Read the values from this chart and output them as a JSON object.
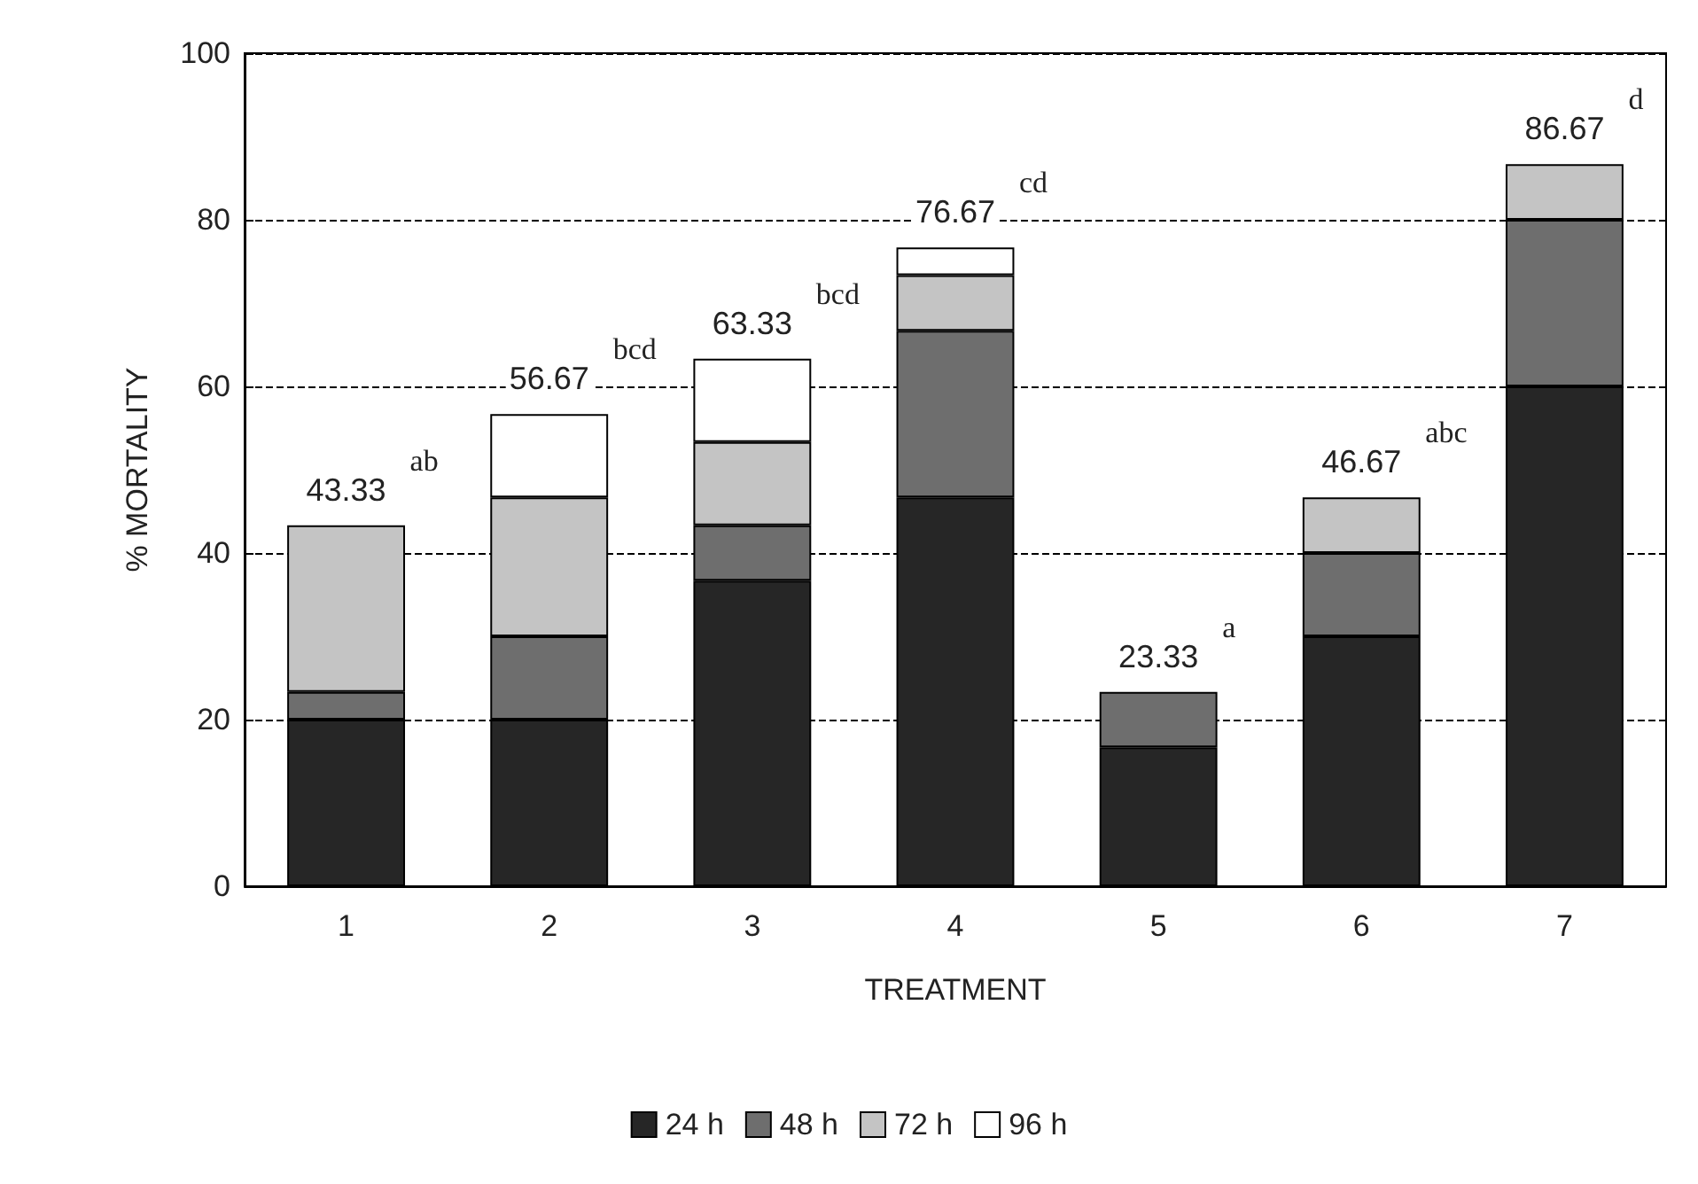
{
  "chart_data": {
    "type": "bar",
    "stacked": true,
    "xlabel": "TREATMENT",
    "ylabel": "% MORTALITY",
    "categories": [
      "1",
      "2",
      "3",
      "4",
      "5",
      "6",
      "7"
    ],
    "series": [
      {
        "name": "24 h",
        "color": "#262626",
        "values": [
          20,
          20,
          36.67,
          46.67,
          16.67,
          30,
          60
        ]
      },
      {
        "name": "48 h",
        "color": "#6e6e6e",
        "values": [
          3.33,
          10,
          6.66,
          20,
          6.66,
          10,
          20
        ]
      },
      {
        "name": "72 h",
        "color": "#c4c4c4",
        "values": [
          20,
          16.67,
          10,
          6.67,
          0,
          6.67,
          6.67
        ]
      },
      {
        "name": "96 h",
        "color": "#ffffff",
        "values": [
          0,
          10,
          10,
          3.33,
          0,
          0,
          0
        ]
      }
    ],
    "totals": [
      "43.33",
      "56.67",
      "63.33",
      "76.67",
      "23.33",
      "46.67",
      "86.67"
    ],
    "annotations": [
      {
        "text": "ab",
        "x": "1",
        "y": 43.33
      },
      {
        "text": "bcd",
        "x": "2",
        "y": 56.67
      },
      {
        "text": "bcd",
        "x": "3",
        "y": 63.33
      },
      {
        "text": "cd",
        "x": "4",
        "y": 76.67
      },
      {
        "text": "a",
        "x": "5",
        "y": 23.33
      },
      {
        "text": "abc",
        "x": "6",
        "y": 46.67
      },
      {
        "text": "d",
        "x": "7",
        "y": 86.67
      }
    ],
    "ylim": [
      0,
      100
    ],
    "yticks": [
      0,
      20,
      40,
      60,
      80,
      100
    ],
    "grid": "y",
    "legend": "bottom"
  }
}
